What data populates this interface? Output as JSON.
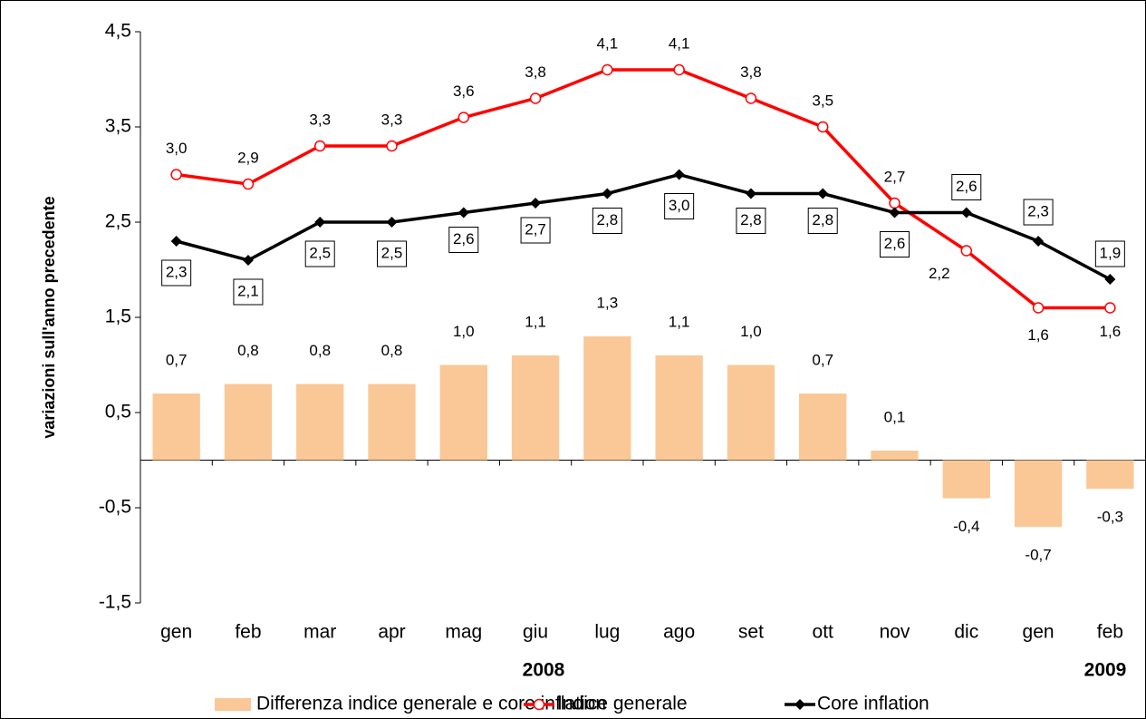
{
  "chart_data": {
    "type": "bar-line",
    "y_label": "variazioni sull'anno precedente",
    "categories": [
      "gen",
      "feb",
      "mar",
      "apr",
      "mag",
      "giu",
      "lug",
      "ago",
      "set",
      "ott",
      "nov",
      "dic",
      "gen",
      "feb"
    ],
    "year_labels": [
      "2008",
      "2009"
    ],
    "ylim": [
      -1.5,
      4.5
    ],
    "yticks": [
      {
        "value": -1.5,
        "label": "-1,5"
      },
      {
        "value": -0.5,
        "label": "-0,5"
      },
      {
        "value": 0.5,
        "label": "0,5"
      },
      {
        "value": 1.5,
        "label": "1,5"
      },
      {
        "value": 2.5,
        "label": "2,5"
      },
      {
        "value": 3.5,
        "label": "3,5"
      },
      {
        "value": 4.5,
        "label": "4,5"
      }
    ],
    "series": [
      {
        "name": "Differenza indice generale e core inflation",
        "type": "bar",
        "color": "#fac896",
        "values": [
          0.7,
          0.8,
          0.8,
          0.8,
          1.0,
          1.1,
          1.3,
          1.1,
          1.0,
          0.7,
          0.1,
          -0.4,
          -0.7,
          -0.3
        ],
        "value_labels": [
          "0,7",
          "0,8",
          "0,8",
          "0,8",
          "1,0",
          "1,1",
          "1,3",
          "1,1",
          "1,0",
          "0,7",
          "0,1",
          "-0,4",
          "-0,7",
          "-0,3"
        ]
      },
      {
        "name": "Indice generale",
        "type": "line",
        "color": "#ff0000",
        "values": [
          3.0,
          2.9,
          3.3,
          3.3,
          3.6,
          3.8,
          4.1,
          4.1,
          3.8,
          3.5,
          2.7,
          2.2,
          1.6,
          1.6
        ],
        "value_labels": [
          "3,0",
          "2,9",
          "3,3",
          "3,3",
          "3,6",
          "3,8",
          "4,1",
          "4,1",
          "3,8",
          "3,5",
          "2,7",
          "2,2",
          "1,6",
          "1,6"
        ]
      },
      {
        "name": "Core inflation",
        "type": "line",
        "color": "#000000",
        "values": [
          2.3,
          2.1,
          2.5,
          2.5,
          2.6,
          2.7,
          2.8,
          3.0,
          2.8,
          2.8,
          2.6,
          2.6,
          2.3,
          1.9
        ],
        "value_labels": [
          "2,3",
          "2,1",
          "2,5",
          "2,5",
          "2,6",
          "2,7",
          "2,8",
          "3,0",
          "2,8",
          "2,8",
          "2,6",
          "2,6",
          "2,3",
          "1,9"
        ]
      }
    ]
  }
}
